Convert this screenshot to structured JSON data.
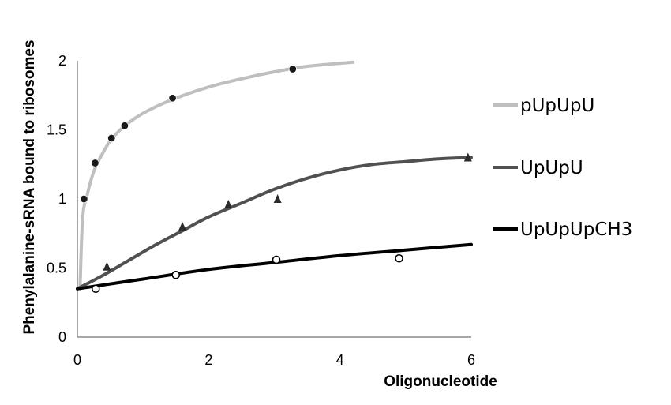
{
  "chart_data": {
    "type": "line",
    "title": "",
    "xlabel": "Oligonucleotide",
    "ylabel": "Phenylalanine-sRNA bound to ribosomes",
    "xlim": [
      0,
      6
    ],
    "ylim": [
      0,
      2
    ],
    "xticks": [
      0,
      2,
      4,
      6
    ],
    "yticks": [
      0,
      0.5,
      1,
      1.5,
      2
    ],
    "grid": false,
    "legend_position": "right",
    "series": [
      {
        "name": "pUpUpU",
        "color": "#bfbfbf",
        "marker": "filled-circle",
        "marker_color": "#1a1a1a",
        "points": [
          [
            0.1,
            1.0
          ],
          [
            0.27,
            1.26
          ],
          [
            0.52,
            1.44
          ],
          [
            0.72,
            1.53
          ],
          [
            1.45,
            1.73
          ],
          [
            3.28,
            1.94
          ]
        ],
        "curve": [
          [
            0.04,
            0.35
          ],
          [
            0.08,
            0.86
          ],
          [
            0.15,
            1.03
          ],
          [
            0.25,
            1.2
          ],
          [
            0.35,
            1.3
          ],
          [
            0.5,
            1.42
          ],
          [
            0.7,
            1.52
          ],
          [
            1.0,
            1.62
          ],
          [
            1.45,
            1.72
          ],
          [
            2.0,
            1.81
          ],
          [
            2.5,
            1.87
          ],
          [
            3.0,
            1.92
          ],
          [
            3.5,
            1.96
          ],
          [
            4.2,
            1.99
          ]
        ]
      },
      {
        "name": "UpUpU",
        "color": "#505050",
        "marker": "filled-triangle",
        "marker_color": "#2a2a2a",
        "points": [
          [
            0.45,
            0.51
          ],
          [
            1.6,
            0.8
          ],
          [
            2.3,
            0.96
          ],
          [
            3.05,
            1.0
          ],
          [
            5.95,
            1.3
          ]
        ],
        "curve": [
          [
            0.0,
            0.35
          ],
          [
            0.4,
            0.45
          ],
          [
            0.8,
            0.56
          ],
          [
            1.2,
            0.67
          ],
          [
            1.6,
            0.77
          ],
          [
            2.0,
            0.87
          ],
          [
            2.5,
            0.97
          ],
          [
            3.0,
            1.07
          ],
          [
            3.5,
            1.15
          ],
          [
            4.0,
            1.21
          ],
          [
            4.5,
            1.25
          ],
          [
            5.0,
            1.27
          ],
          [
            5.5,
            1.29
          ],
          [
            6.0,
            1.3
          ]
        ]
      },
      {
        "name": "UpUpUpCH3",
        "color": "#000000",
        "marker": "open-circle",
        "marker_color": "#000000",
        "points": [
          [
            0.28,
            0.35
          ],
          [
            1.5,
            0.45
          ],
          [
            3.03,
            0.56
          ],
          [
            4.9,
            0.57
          ]
        ],
        "curve": [
          [
            0.0,
            0.35
          ],
          [
            1.0,
            0.42
          ],
          [
            2.0,
            0.49
          ],
          [
            3.0,
            0.54
          ],
          [
            4.0,
            0.59
          ],
          [
            5.0,
            0.63
          ],
          [
            6.0,
            0.67
          ]
        ]
      }
    ]
  }
}
